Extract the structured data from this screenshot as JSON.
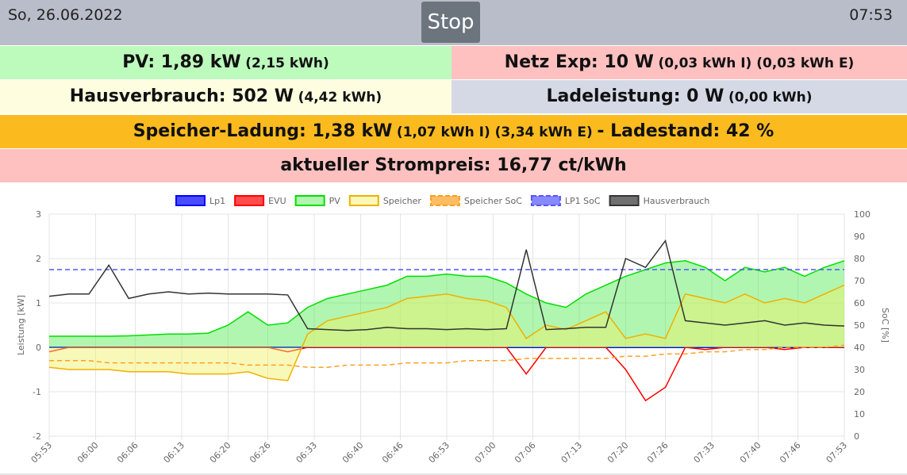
{
  "header": {
    "date": "So, 26.06.2022",
    "button": "Stop",
    "time": "07:53"
  },
  "tiles": [
    {
      "parts": [
        "PV: 1,89 kW",
        "(2,15 kWh)"
      ]
    },
    {
      "parts": [
        "Netz Exp: 10 W",
        "(0,03 kWh I) (0,03 kWh E)"
      ]
    },
    {
      "parts": [
        "Hausverbrauch: 502 W",
        "(4,42 kWh)"
      ]
    },
    {
      "parts": [
        "Ladeleistung: 0 W",
        "(0,00 kWh)"
      ]
    },
    {
      "parts": [
        "Speicher-Ladung: 1,38 kW",
        "(1,07 kWh I) (3,34 kWh E)",
        "- Ladestand: 42 %"
      ]
    },
    {
      "parts": [
        "aktueller Strompreis: 16,77 ct/kWh"
      ]
    }
  ],
  "chart_data": {
    "type": "line",
    "ylabel": "Leistung [kW]",
    "y2label": "SoC [%]",
    "x": [
      "05:53",
      "05:56",
      "05:59",
      "06:02",
      "06:05",
      "06:08",
      "06:11",
      "06:14",
      "06:17",
      "06:20",
      "06:23",
      "06:26",
      "06:29",
      "06:32",
      "06:35",
      "06:38",
      "06:41",
      "06:44",
      "06:47",
      "06:50",
      "06:53",
      "06:56",
      "06:59",
      "07:02",
      "07:05",
      "07:08",
      "07:11",
      "07:14",
      "07:17",
      "07:20",
      "07:23",
      "07:26",
      "07:29",
      "07:32",
      "07:35",
      "07:38",
      "07:41",
      "07:44",
      "07:47",
      "07:50",
      "07:53"
    ],
    "xlim": [
      "05:53",
      "07:53"
    ],
    "xticks": [
      "05:53",
      "06:00",
      "06:06",
      "06:13",
      "06:20",
      "06:26",
      "06:33",
      "06:40",
      "06:46",
      "06:53",
      "07:00",
      "07:06",
      "07:13",
      "07:20",
      "07:26",
      "07:33",
      "07:40",
      "07:46",
      "07:53"
    ],
    "ylim": [
      -2,
      3
    ],
    "yticks": [
      -2,
      -1,
      0,
      1,
      2,
      3
    ],
    "y2lim": [
      0,
      100
    ],
    "y2ticks": [
      0,
      10,
      20,
      30,
      40,
      50,
      60,
      70,
      80,
      90,
      100
    ],
    "grid": true,
    "series": [
      {
        "name": "Lp1",
        "color": "#0000ff",
        "values": [
          0,
          0,
          0,
          0,
          0,
          0,
          0,
          0,
          0,
          0,
          0,
          0,
          0,
          0,
          0,
          0,
          0,
          0,
          0,
          0,
          0,
          0,
          0,
          0,
          0,
          0,
          0,
          0,
          0,
          0,
          0,
          0,
          0,
          0,
          0,
          0,
          0,
          0,
          0,
          0,
          0
        ]
      },
      {
        "name": "EVU",
        "color": "#ff0000",
        "values": [
          -0.1,
          0,
          0,
          0,
          0,
          0,
          0,
          0,
          0,
          0,
          0,
          0,
          -0.1,
          0,
          0,
          0,
          0,
          0,
          0,
          0,
          0,
          0,
          0,
          0,
          -0.6,
          0,
          0,
          0,
          0,
          -0.5,
          -1.2,
          -0.9,
          0,
          -0.05,
          0,
          0,
          0,
          -0.05,
          0,
          0,
          0
        ]
      },
      {
        "name": "PV",
        "color": "#00e000",
        "fill": "rgba(80,235,80,0.45)",
        "values": [
          0.25,
          0.25,
          0.25,
          0.25,
          0.26,
          0.28,
          0.3,
          0.3,
          0.32,
          0.5,
          0.8,
          0.5,
          0.55,
          0.9,
          1.1,
          1.2,
          1.3,
          1.4,
          1.6,
          1.6,
          1.65,
          1.6,
          1.6,
          1.45,
          1.2,
          1.0,
          0.9,
          1.2,
          1.4,
          1.6,
          1.75,
          1.9,
          1.95,
          1.8,
          1.5,
          1.8,
          1.7,
          1.8,
          1.6,
          1.8,
          1.95
        ]
      },
      {
        "name": "Speicher",
        "color": "#f0b000",
        "fill": "rgba(240,240,100,0.45)",
        "values": [
          -0.45,
          -0.5,
          -0.5,
          -0.5,
          -0.55,
          -0.55,
          -0.55,
          -0.6,
          -0.6,
          -0.6,
          -0.55,
          -0.7,
          -0.75,
          0.3,
          0.6,
          0.7,
          0.8,
          0.9,
          1.1,
          1.15,
          1.2,
          1.1,
          1.05,
          0.9,
          0.2,
          0.5,
          0.4,
          0.6,
          0.8,
          0.2,
          0.3,
          0.2,
          1.2,
          1.1,
          1.0,
          1.2,
          1.0,
          1.1,
          1.0,
          1.2,
          1.4
        ]
      },
      {
        "name": "Speicher SoC",
        "color": "#ffa020",
        "dashed": true,
        "axis": "y2",
        "values": [
          34,
          34,
          34,
          33,
          33,
          33,
          33,
          33,
          33,
          33,
          32,
          32,
          32,
          31,
          31,
          32,
          32,
          32,
          33,
          33,
          33,
          34,
          34,
          34,
          35,
          35,
          35,
          35,
          35,
          36,
          36,
          37,
          37,
          38,
          38,
          39,
          39,
          40,
          40,
          40,
          41
        ]
      },
      {
        "name": "LP1 SoC",
        "color": "#5555ff",
        "dashed": true,
        "axis": "y2",
        "values": [
          75,
          75,
          75,
          75,
          75,
          75,
          75,
          75,
          75,
          75,
          75,
          75,
          75,
          75,
          75,
          75,
          75,
          75,
          75,
          75,
          75,
          75,
          75,
          75,
          75,
          75,
          75,
          75,
          75,
          75,
          75,
          75,
          75,
          75,
          75,
          75,
          75,
          75,
          75,
          75,
          75
        ]
      },
      {
        "name": "Hausverbrauch",
        "color": "#333333",
        "values": [
          1.15,
          1.2,
          1.2,
          1.85,
          1.1,
          1.2,
          1.25,
          1.2,
          1.22,
          1.2,
          1.2,
          1.2,
          1.18,
          0.42,
          0.4,
          0.38,
          0.4,
          0.45,
          0.42,
          0.42,
          0.4,
          0.42,
          0.4,
          0.42,
          2.2,
          0.4,
          0.42,
          0.45,
          0.45,
          2.0,
          1.8,
          2.4,
          0.6,
          0.55,
          0.5,
          0.55,
          0.6,
          0.5,
          0.55,
          0.5,
          0.48
        ]
      }
    ]
  }
}
